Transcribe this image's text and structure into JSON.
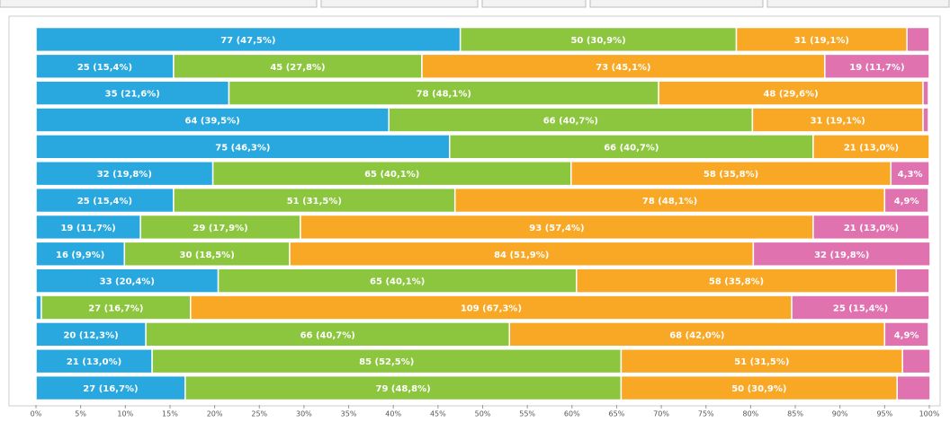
{
  "chart_data": {
    "type": "stacked_bar_percent",
    "xlim": [
      0,
      100
    ],
    "xticks": [
      {
        "value": 0,
        "label": "0%"
      },
      {
        "value": 5,
        "label": "5%"
      },
      {
        "value": 10,
        "label": "10%"
      },
      {
        "value": 15,
        "label": "15%"
      },
      {
        "value": 20,
        "label": "20%"
      },
      {
        "value": 25,
        "label": "25%"
      },
      {
        "value": 30,
        "label": "30%"
      },
      {
        "value": 35,
        "label": "35%"
      },
      {
        "value": 40,
        "label": "40%"
      },
      {
        "value": 45,
        "label": "45%"
      },
      {
        "value": 50,
        "label": "50%"
      },
      {
        "value": 55,
        "label": "55%"
      },
      {
        "value": 60,
        "label": "60%"
      },
      {
        "value": 65,
        "label": "65%"
      },
      {
        "value": 70,
        "label": "70%"
      },
      {
        "value": 75,
        "label": "75%"
      },
      {
        "value": 80,
        "label": "80%"
      },
      {
        "value": 85,
        "label": "85%"
      },
      {
        "value": 90,
        "label": "90%"
      },
      {
        "value": 95,
        "label": "95%"
      },
      {
        "value": 100,
        "label": "100%"
      }
    ],
    "series": [
      {
        "color": "#29a8e0",
        "values": [
          47.5,
          15.4,
          21.6,
          39.5,
          46.3,
          19.8,
          15.4,
          11.7,
          9.9,
          20.4,
          0.6,
          12.3,
          13.0,
          16.7
        ],
        "value_labels": [
          "77 (47,5%)",
          "25 (15,4%)",
          "35 (21,6%)",
          "64 (39,5%)",
          "75 (46,3%)",
          "32 (19,8%)",
          "25 (15,4%)",
          "19 (11,7%)",
          "16 (9,9%)",
          "33 (20,4%)",
          null,
          "20 (12,3%)",
          "21 (13,0%)",
          "27 (16,7%)"
        ]
      },
      {
        "color": "#8cc63f",
        "values": [
          30.9,
          27.8,
          48.1,
          40.7,
          40.7,
          40.1,
          31.5,
          17.9,
          18.5,
          40.1,
          16.7,
          40.7,
          52.5,
          48.8
        ],
        "value_labels": [
          "50 (30,9%)",
          "45 (27,8%)",
          "78 (48,1%)",
          "66 (40,7%)",
          "66 (40,7%)",
          "65 (40,1%)",
          "51 (31,5%)",
          "29 (17,9%)",
          "30 (18,5%)",
          "65 (40,1%)",
          "27 (16,7%)",
          "66 (40,7%)",
          "85 (52,5%)",
          "79 (48,8%)"
        ]
      },
      {
        "color": "#f9a825",
        "values": [
          19.1,
          45.1,
          29.6,
          19.1,
          13.0,
          35.8,
          48.1,
          57.4,
          51.9,
          35.8,
          67.3,
          42.0,
          31.5,
          30.9
        ],
        "value_labels": [
          "31 (19,1%)",
          "73 (45,1%)",
          "48 (29,6%)",
          "31 (19,1%)",
          "21 (13,0%)",
          "58 (35,8%)",
          "78 (48,1%)",
          "93 (57,4%)",
          "84 (51,9%)",
          "58 (35,8%)",
          "109 (67,3%)",
          "68 (42,0%)",
          "51 (31,5%)",
          "50 (30,9%)"
        ]
      },
      {
        "color": "#e072b0",
        "values": [
          2.5,
          11.7,
          0.6,
          0.6,
          0,
          4.3,
          4.9,
          13.0,
          19.8,
          3.7,
          15.4,
          4.9,
          3.1,
          3.7
        ],
        "value_labels": [
          null,
          "19 (11,7%)",
          null,
          null,
          null,
          "4,3%",
          "4,9%",
          "21 (13,0%)",
          "32 (19,8%)",
          null,
          "25 (15,4%)",
          "4,9%",
          null,
          null
        ]
      }
    ]
  }
}
